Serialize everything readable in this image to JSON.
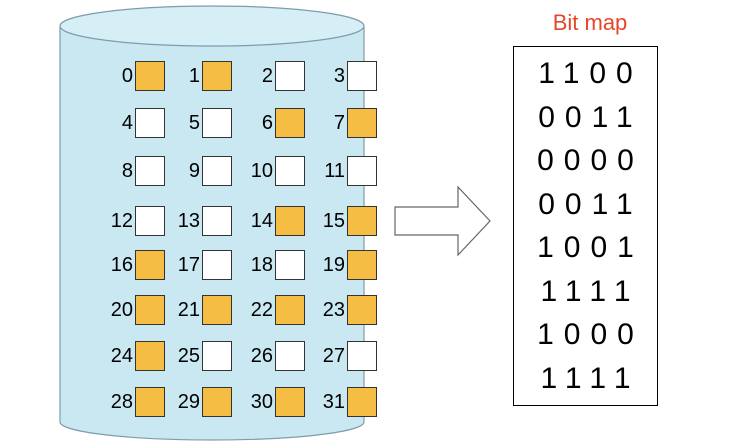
{
  "colors": {
    "cylinder_fill": "#c9e8f2",
    "cylinder_stroke": "#7f9cab",
    "used_block": "#f5bd43",
    "free_block": "#ffffff",
    "title": "#e8462a",
    "arrow_stroke": "#666666"
  },
  "disk": {
    "blocks": [
      {
        "label": "0",
        "used": true
      },
      {
        "label": "1",
        "used": true
      },
      {
        "label": "2",
        "used": false
      },
      {
        "label": "3",
        "used": false
      },
      {
        "label": "4",
        "used": false
      },
      {
        "label": "5",
        "used": false
      },
      {
        "label": "6",
        "used": true
      },
      {
        "label": "7",
        "used": true
      },
      {
        "label": "8",
        "used": false
      },
      {
        "label": "9",
        "used": false
      },
      {
        "label": "10",
        "used": false
      },
      {
        "label": "11",
        "used": false
      },
      {
        "label": "12",
        "used": false
      },
      {
        "label": "13",
        "used": false
      },
      {
        "label": "14",
        "used": true
      },
      {
        "label": "15",
        "used": true
      },
      {
        "label": "16",
        "used": true
      },
      {
        "label": "17",
        "used": false
      },
      {
        "label": "18",
        "used": false
      },
      {
        "label": "19",
        "used": true
      },
      {
        "label": "20",
        "used": true
      },
      {
        "label": "21",
        "used": true
      },
      {
        "label": "22",
        "used": true
      },
      {
        "label": "23",
        "used": true
      },
      {
        "label": "24",
        "used": true
      },
      {
        "label": "25",
        "used": false
      },
      {
        "label": "26",
        "used": false
      },
      {
        "label": "27",
        "used": false
      },
      {
        "label": "28",
        "used": true
      },
      {
        "label": "29",
        "used": true
      },
      {
        "label": "30",
        "used": true
      },
      {
        "label": "31",
        "used": true
      }
    ]
  },
  "bitmap": {
    "title": "Bit map",
    "rows": [
      "1100",
      "0011",
      "0000",
      "0011",
      "1001",
      "1111",
      "1000",
      "1111"
    ]
  }
}
